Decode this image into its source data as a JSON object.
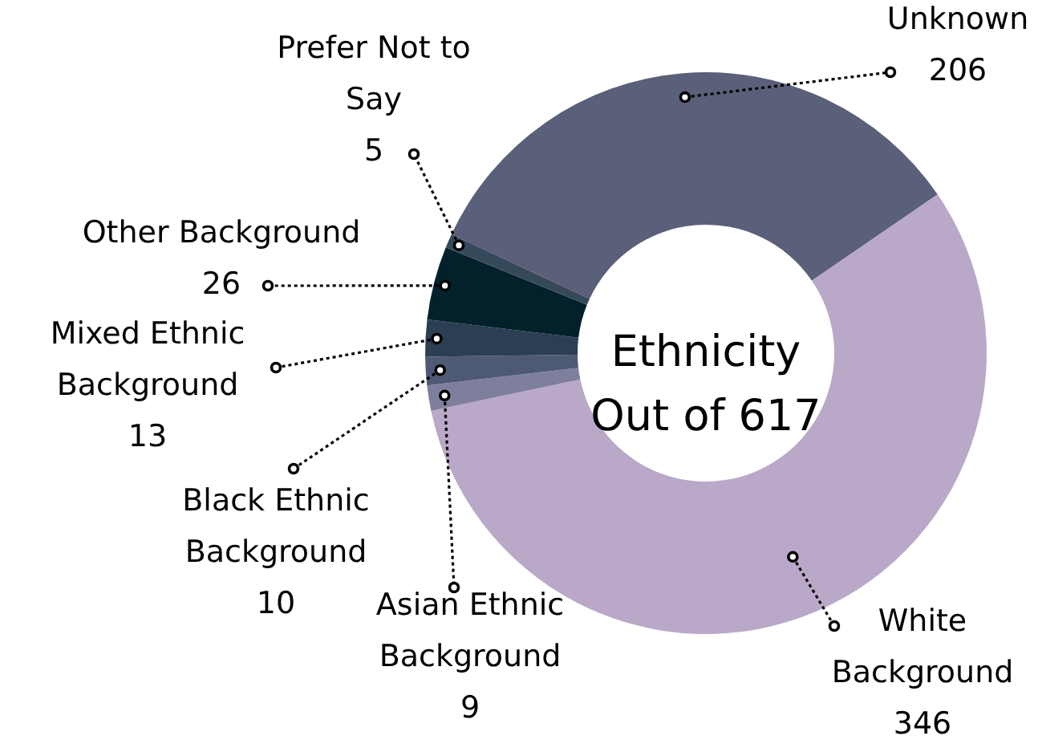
{
  "chart_data": {
    "type": "donut",
    "title": "Ethnicity",
    "subtitle": "Out of 617",
    "categories": [
      "Unknown",
      "White Background",
      "Asian Ethnic Background",
      "Black Ethnic Background",
      "Mixed Ethnic Background",
      "Other Background",
      "Prefer Not to Say"
    ],
    "values": [
      206,
      346,
      9,
      10,
      13,
      26,
      5
    ],
    "colors": [
      "#5a6079",
      "#baa8c8",
      "#7e7f9c",
      "#4e5a74",
      "#2c3f52",
      "#02212b",
      "#36495a"
    ],
    "data_labels": true
  }
}
